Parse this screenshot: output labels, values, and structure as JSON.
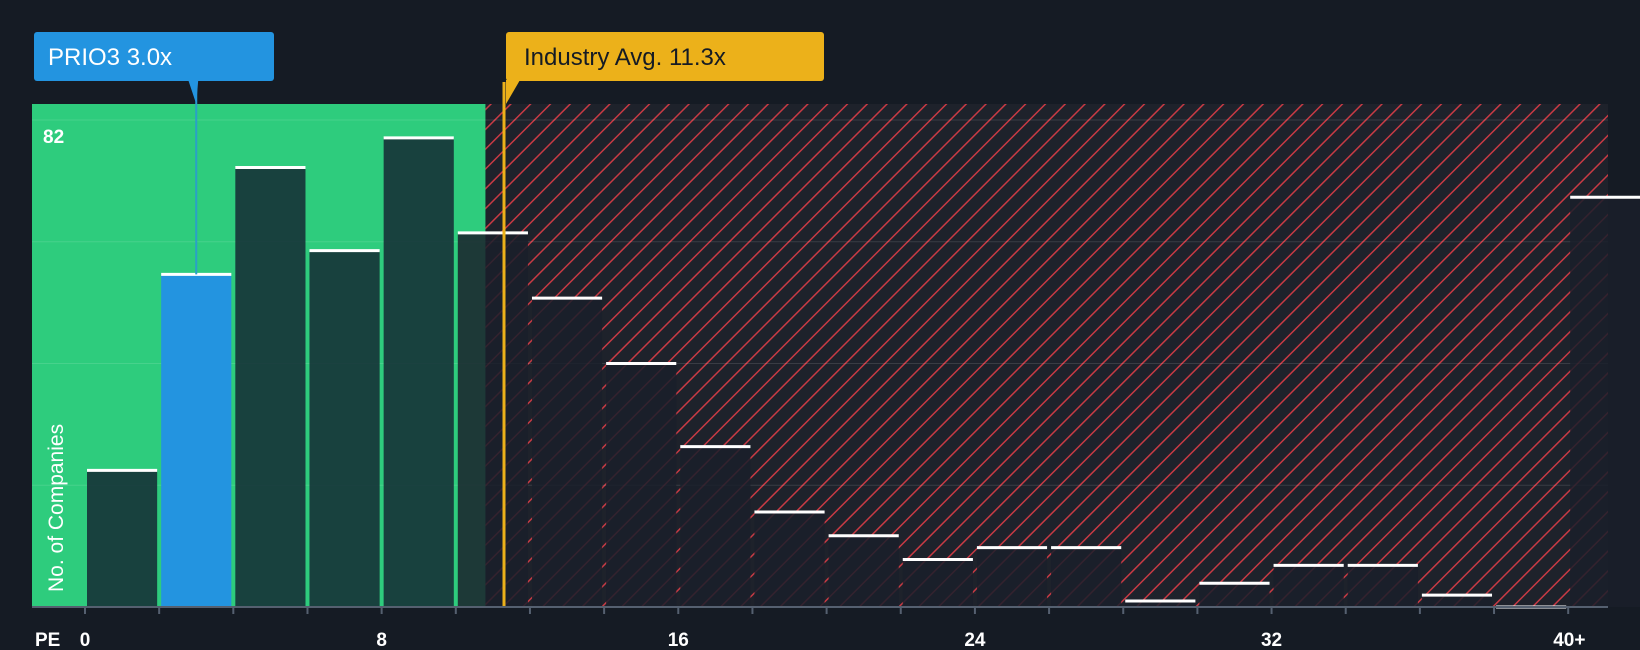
{
  "chart_data": {
    "type": "bar",
    "title": "",
    "xlabel": "PE",
    "ylabel": "No. of Companies",
    "bin_width": 2,
    "bin_starts": [
      0,
      2,
      4,
      6,
      8,
      10,
      12,
      14,
      16,
      18,
      20,
      22,
      24,
      26,
      28,
      30,
      32,
      34,
      36,
      38,
      40
    ],
    "values": [
      23,
      56,
      74,
      60,
      79,
      63,
      52,
      41,
      27,
      16,
      12,
      8,
      10,
      10,
      1,
      4,
      7,
      7,
      2,
      0,
      69
    ],
    "highlight_bin_index": 1,
    "x_ticks": [
      "0",
      "8",
      "16",
      "24",
      "32",
      "40+"
    ],
    "x_tick_values": [
      0,
      8,
      16,
      24,
      32,
      40
    ],
    "y_max_label": "82",
    "ylim": [
      0,
      82
    ],
    "company": {
      "label": "PRIO3 3.0x",
      "value": 3.0
    },
    "industry": {
      "label": "Industry Avg. 11.3x",
      "value": 11.3
    },
    "green_zone_end": 10.8,
    "colors": {
      "background": "#151b24",
      "green_zone": "#2ecc7d",
      "bar_in_green": "rgba(20,40,50,0.85)",
      "bar_highlight": "#2394e0",
      "bar_red_zone": "rgba(26,30,42,0.85)",
      "hatch": "#c73a44",
      "industry": "#ecb11a",
      "company": "#2394e0"
    }
  }
}
